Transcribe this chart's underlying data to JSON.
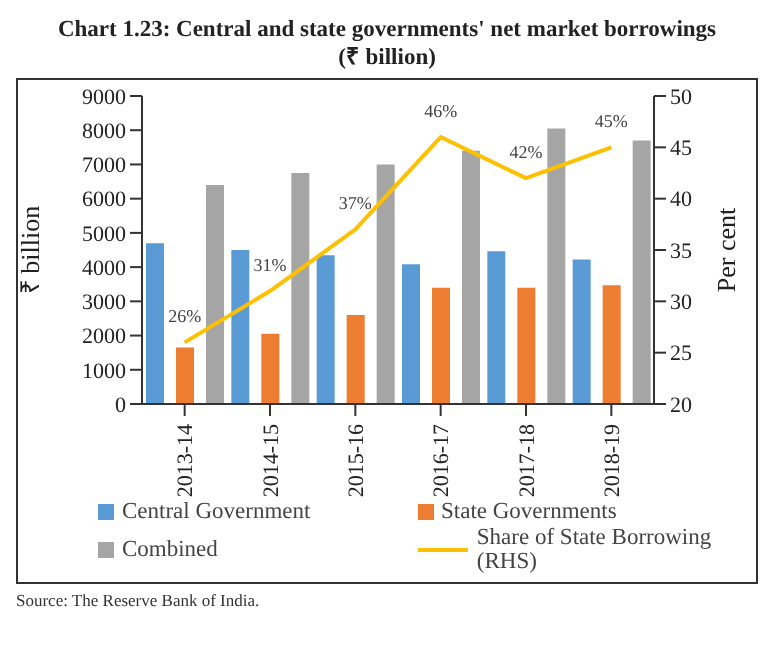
{
  "chart_data": {
    "type": "bar",
    "title": "Chart 1.23: Central and state governments' net market borrowings",
    "subtitle": "(₹ billion)",
    "ylabel": "₹ billion",
    "y2label": "Per cent",
    "categories": [
      "2013-14",
      "2014-15",
      "2015-16",
      "2016-17",
      "2017-18",
      "2018-19"
    ],
    "series": [
      {
        "name": "Central Government",
        "color": "#5b9bd5",
        "values": [
          4700,
          4500,
          4350,
          4080,
          4460,
          4220
        ]
      },
      {
        "name": "State Governments",
        "color": "#ed7d31",
        "values": [
          1650,
          2050,
          2600,
          3400,
          3400,
          3470
        ]
      },
      {
        "name": "Combined",
        "color": "#a5a5a5",
        "values": [
          6400,
          6750,
          7000,
          7400,
          8050,
          7700
        ]
      },
      {
        "name": "Share of State Borrowing (RHS)",
        "type": "line",
        "axis": "y2",
        "color": "#ffc000",
        "values": [
          26,
          31,
          37,
          46,
          42,
          45
        ],
        "value_labels": [
          "26%",
          "31%",
          "37%",
          "46%",
          "42%",
          "45%"
        ]
      }
    ],
    "ylim": [
      0,
      9000
    ],
    "yticks": [
      0,
      1000,
      2000,
      3000,
      4000,
      5000,
      6000,
      7000,
      8000,
      9000
    ],
    "y2lim": [
      20,
      50
    ],
    "y2ticks": [
      20,
      25,
      30,
      35,
      40,
      45,
      50
    ],
    "grid": false,
    "legend": "bottom",
    "marker": "none",
    "annotations": [
      "Source: The Reserve Bank of India."
    ]
  }
}
